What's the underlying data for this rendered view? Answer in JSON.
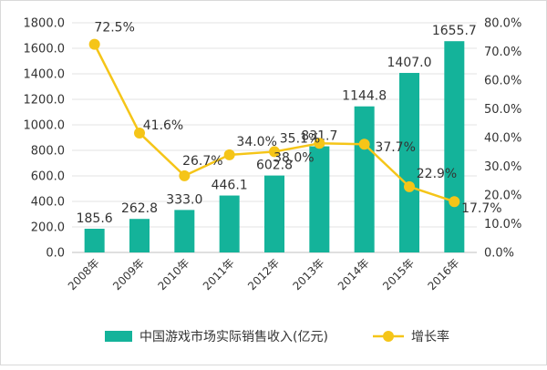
{
  "chart_data": {
    "type": "bar",
    "categories": [
      "2008年",
      "2009年",
      "2010年",
      "2011年",
      "2012年",
      "2013年",
      "2014年",
      "2015年",
      "2016年"
    ],
    "series": [
      {
        "name": "中国游戏市场实际销售收入(亿元)",
        "type": "bar",
        "axis": "left",
        "values": [
          185.6,
          262.8,
          333.0,
          446.1,
          602.8,
          831.7,
          1144.8,
          1407.0,
          1655.7
        ],
        "labels": [
          "185.6",
          "262.8",
          "333.0",
          "446.1",
          "602.8",
          "831.7",
          "1144.8",
          "1407.0",
          "1655.7"
        ],
        "color": "#14B39A"
      },
      {
        "name": "增长率",
        "type": "line",
        "axis": "right",
        "values": [
          72.5,
          41.6,
          26.7,
          34.0,
          35.1,
          38.0,
          37.7,
          22.9,
          17.7
        ],
        "labels": [
          "72.5%",
          "41.6%",
          "26.7%",
          "34.0%",
          "35.1%",
          "38.0%",
          "37.7%",
          "22.9%",
          "17.7%"
        ],
        "color": "#F5C518"
      }
    ],
    "y_left": {
      "lim": [
        0,
        1800
      ],
      "ticks": [
        "0.0",
        "200.0",
        "400.0",
        "600.0",
        "800.0",
        "1000.0",
        "1200.0",
        "1400.0",
        "1600.0",
        "1800.0"
      ]
    },
    "y_right": {
      "lim": [
        0,
        80
      ],
      "ticks": [
        "0.0%",
        "10.0%",
        "20.0%",
        "30.0%",
        "40.0%",
        "50.0%",
        "60.0%",
        "70.0%",
        "80.0%"
      ]
    },
    "title": "",
    "xlabel": "",
    "ylabel": "",
    "grid": true,
    "legend": "bottom"
  }
}
